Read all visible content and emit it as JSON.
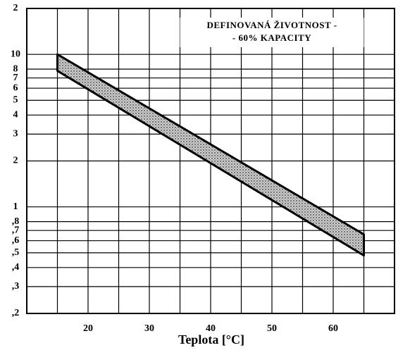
{
  "chart_data": {
    "type": "band",
    "annotation": [
      "DEFINOVANÁ ŽIVOTNOST -",
      "- 60% KAPACITY"
    ],
    "x_label": "Teplota  [°C]",
    "x": [
      15,
      65
    ],
    "upper": [
      10,
      0.66
    ],
    "lower": [
      7.8,
      0.48
    ],
    "color": "#8a8a8a",
    "xlim": [
      10,
      70
    ],
    "xticks": [
      20,
      30,
      40,
      50,
      60
    ],
    "xminorticks": [
      15,
      25,
      35,
      45,
      55,
      65
    ],
    "ylim": [
      0.2,
      20
    ],
    "log_y": true,
    "grid": true,
    "yticks": [
      {
        "value": 20,
        "label": "2"
      },
      10,
      8,
      7,
      6,
      5,
      4,
      3,
      2,
      1,
      {
        "value": 0.8,
        "label": ",8"
      },
      {
        "value": 0.7,
        "label": ",7"
      },
      {
        "value": 0.6,
        "label": ",6"
      },
      {
        "value": 0.5,
        "label": ",5"
      },
      {
        "value": 0.4,
        "label": ",4"
      },
      {
        "value": 0.3,
        "label": ",3"
      },
      {
        "value": 0.2,
        "label": ",2"
      }
    ]
  }
}
